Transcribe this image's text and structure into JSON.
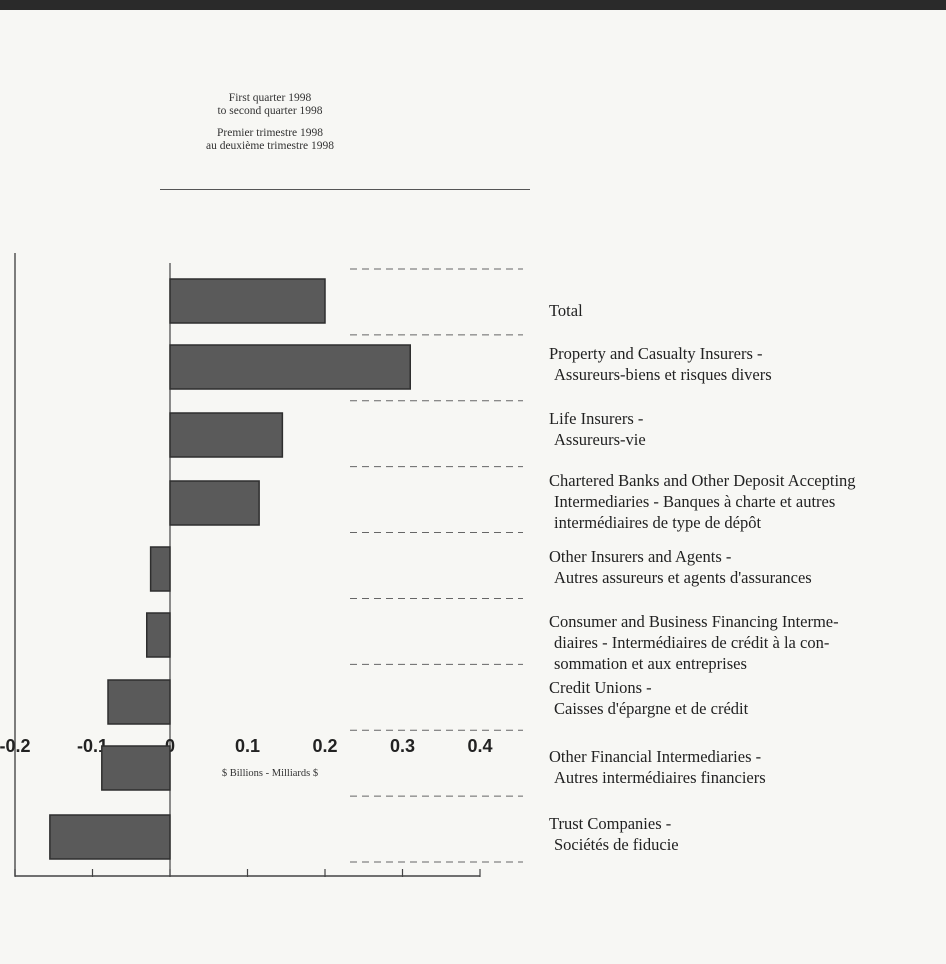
{
  "header": {
    "line1": "First quarter 1998",
    "line2": "to second quarter 1998",
    "line3": "Premier trimestre 1998",
    "line4": "au deuxième trimestre 1998"
  },
  "chart_data": {
    "type": "bar",
    "orientation": "horizontal",
    "xlabel": "$ Billions - Milliards $",
    "xlim": [
      -0.2,
      0.4
    ],
    "xticks": [
      "-0.2",
      "-0.1",
      "0",
      "0.1",
      "0.2",
      "0.3",
      "0.4"
    ],
    "grid": false,
    "categories": [
      {
        "lines": [
          "Total"
        ],
        "value": 0.2
      },
      {
        "lines": [
          "Property and Casualty Insurers -",
          "Assureurs-biens et risques divers"
        ],
        "value": 0.31
      },
      {
        "lines": [
          "Life Insurers -",
          "Assureurs-vie"
        ],
        "value": 0.145
      },
      {
        "lines": [
          "Chartered Banks and Other Deposit Accepting",
          "Intermediaries - Banques à charte et autres",
          "intermédiaires de type de dépôt"
        ],
        "value": 0.115
      },
      {
        "lines": [
          "Other Insurers and Agents -",
          "Autres assureurs et agents d'assurances"
        ],
        "value": -0.025
      },
      {
        "lines": [
          "Consumer and Business Financing Interme-",
          "diaires - Intermédiaires de crédit à la con-",
          "sommation et aux entreprises"
        ],
        "value": -0.03
      },
      {
        "lines": [
          "Credit Unions -",
          "Caisses d'épargne et de crédit"
        ],
        "value": -0.08
      },
      {
        "lines": [
          "Other Financial Intermediaries -",
          "Autres intermédiaires financiers"
        ],
        "value": -0.088
      },
      {
        "lines": [
          "Trust Companies -",
          "Sociétés de fiducie"
        ],
        "value": -0.155
      }
    ]
  }
}
